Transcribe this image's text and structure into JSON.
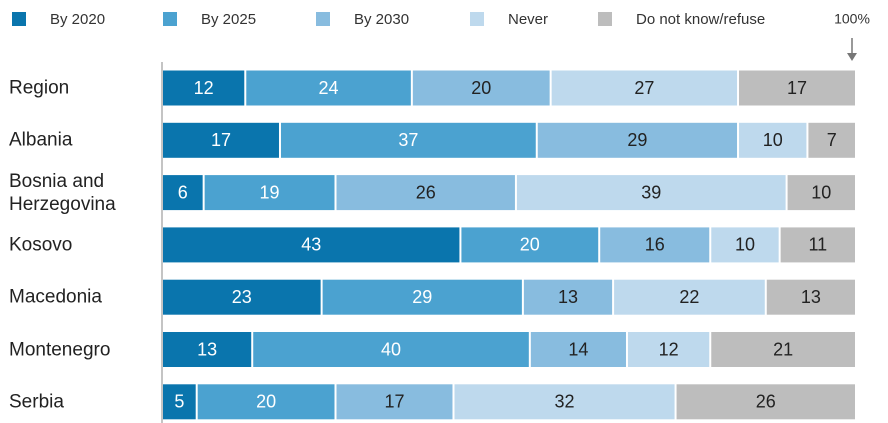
{
  "chart_data": {
    "type": "stacked_barh",
    "categories": [
      "Region",
      "Albania",
      "Bosnia and Herzegovina",
      "Kosovo",
      "Macedonia",
      "Montenegro",
      "Serbia"
    ],
    "series": [
      {
        "name": "By 2020",
        "color": "#0a75ad",
        "values": [
          12,
          17,
          6,
          43,
          23,
          13,
          5
        ]
      },
      {
        "name": "By 2025",
        "color": "#4ba2d0",
        "values": [
          24,
          37,
          19,
          20,
          29,
          40,
          20
        ]
      },
      {
        "name": "By 2030",
        "color": "#88bcdf",
        "values": [
          20,
          29,
          26,
          16,
          13,
          14,
          17
        ]
      },
      {
        "name": "Never",
        "color": "#bed9ed",
        "values": [
          27,
          10,
          39,
          10,
          22,
          12,
          32
        ]
      },
      {
        "name": "Do not know/refuse",
        "color": "#bdbdbd",
        "values": [
          17,
          7,
          10,
          11,
          13,
          21,
          26
        ]
      }
    ],
    "xlim": [
      0,
      100
    ],
    "annotation": "100%"
  }
}
